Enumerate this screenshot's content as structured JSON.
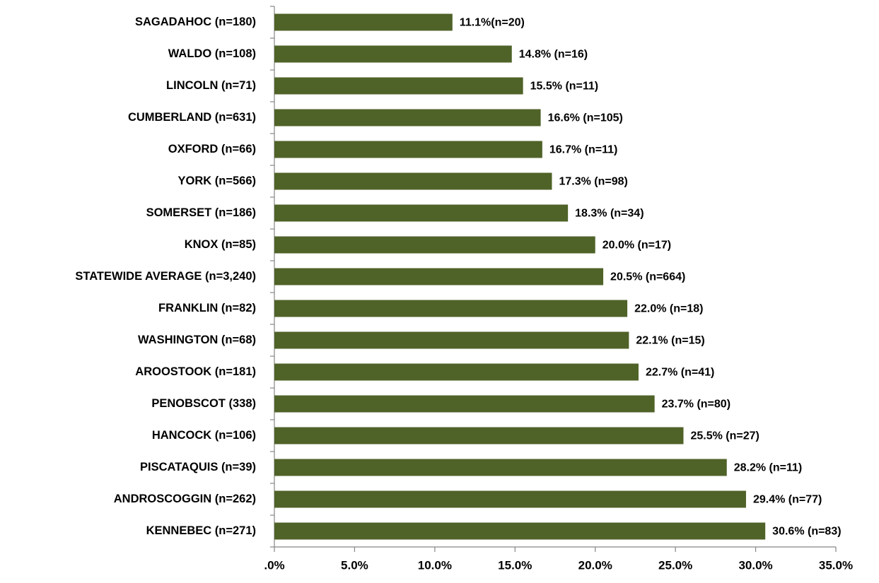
{
  "chart_data": {
    "type": "bar",
    "orientation": "horizontal",
    "categories": [
      "SAGADAHOC (n=180)",
      "WALDO (n=108)",
      "LINCOLN (n=71)",
      "CUMBERLAND (n=631)",
      "OXFORD (n=66)",
      "YORK (n=566)",
      "SOMERSET (n=186)",
      "KNOX (n=85)",
      "STATEWIDE AVERAGE (n=3,240)",
      "FRANKLIN (n=82)",
      "WASHINGTON (n=68)",
      "AROOSTOOK (n=181)",
      "PENOBSCOT (338)",
      "HANCOCK (n=106)",
      "PISCATAQUIS (n=39)",
      "ANDROSCOGGIN (n=262)",
      "KENNEBEC (n=271)"
    ],
    "values": [
      11.1,
      14.8,
      15.5,
      16.6,
      16.7,
      17.3,
      18.3,
      20.0,
      20.5,
      22.0,
      22.1,
      22.7,
      23.7,
      25.5,
      28.2,
      29.4,
      30.6
    ],
    "value_labels": [
      "11.1%(n=20)",
      "14.8% (n=16)",
      "15.5% (n=11)",
      "16.6% (n=105)",
      "16.7% (n=11)",
      "17.3% (n=98)",
      "18.3% (n=34)",
      "20.0% (n=17)",
      "20.5% (n=664)",
      "22.0% (n=18)",
      "22.1% (n=15)",
      "22.7% (n=41)",
      "23.7% (n=80)",
      "25.5% (n=27)",
      "28.2% (n=11)",
      "29.4% (n=77)",
      "30.6% (n=83)"
    ],
    "color": "#4f6228",
    "xlim": [
      0,
      35
    ],
    "xticks": [
      {
        "value": 0,
        "label": ".0%"
      },
      {
        "value": 5,
        "label": "5.0%"
      },
      {
        "value": 10,
        "label": "10.0%"
      },
      {
        "value": 15,
        "label": "15.0%"
      },
      {
        "value": 20,
        "label": "20.0%"
      },
      {
        "value": 25,
        "label": "25.0%"
      },
      {
        "value": 30,
        "label": "30.0%"
      },
      {
        "value": 35,
        "label": "35.0%"
      }
    ],
    "grid": false
  }
}
